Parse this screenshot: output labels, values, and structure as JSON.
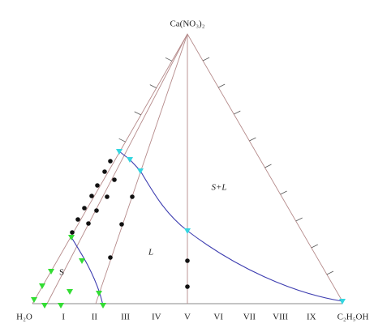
{
  "vertices": {
    "top": "Ca(NO₃)₂",
    "left": "H₂O",
    "right": "C₂H₅OH"
  },
  "regions": {
    "solid_liquid": "S+L",
    "liquid": "L",
    "solid": "S"
  },
  "axis_labels": [
    "I",
    "II",
    "III",
    "IV",
    "V",
    "VI",
    "VII",
    "VIII",
    "IX"
  ]
}
